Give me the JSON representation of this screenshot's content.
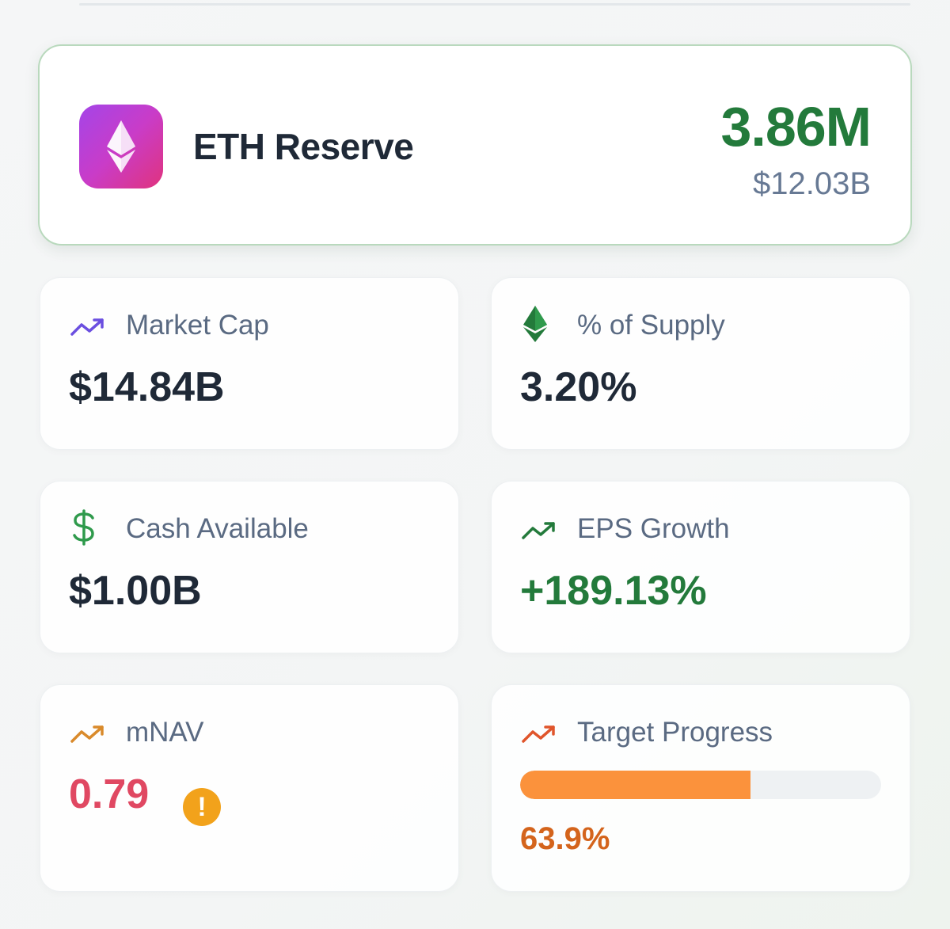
{
  "reserve": {
    "title": "ETH Reserve",
    "amount": "3.86M",
    "usd_value": "$12.03B",
    "icon": "ethereum-icon"
  },
  "metrics": {
    "market_cap": {
      "label": "Market Cap",
      "value": "$14.84B",
      "icon": "trending-up-icon"
    },
    "supply": {
      "label": "% of Supply",
      "value": "3.20%",
      "icon": "ethereum-icon"
    },
    "cash": {
      "label": "Cash Available",
      "value": "$1.00B",
      "icon": "dollar-icon"
    },
    "eps": {
      "label": "EPS Growth",
      "value": "+189.13%",
      "icon": "trending-up-icon"
    },
    "mnav": {
      "label": "mNAV",
      "value": "0.79",
      "warning": "!",
      "icon": "trending-up-icon"
    },
    "target": {
      "label": "Target Progress",
      "value": "63.9%",
      "progress": 0.639,
      "icon": "trending-up-icon"
    }
  },
  "colors": {
    "green": "#237a3b",
    "red": "#e04862",
    "orange": "#fb923c",
    "purple": "#6b4fe0",
    "badge_gradient": [
      "#a445e8",
      "#e0337d"
    ]
  }
}
